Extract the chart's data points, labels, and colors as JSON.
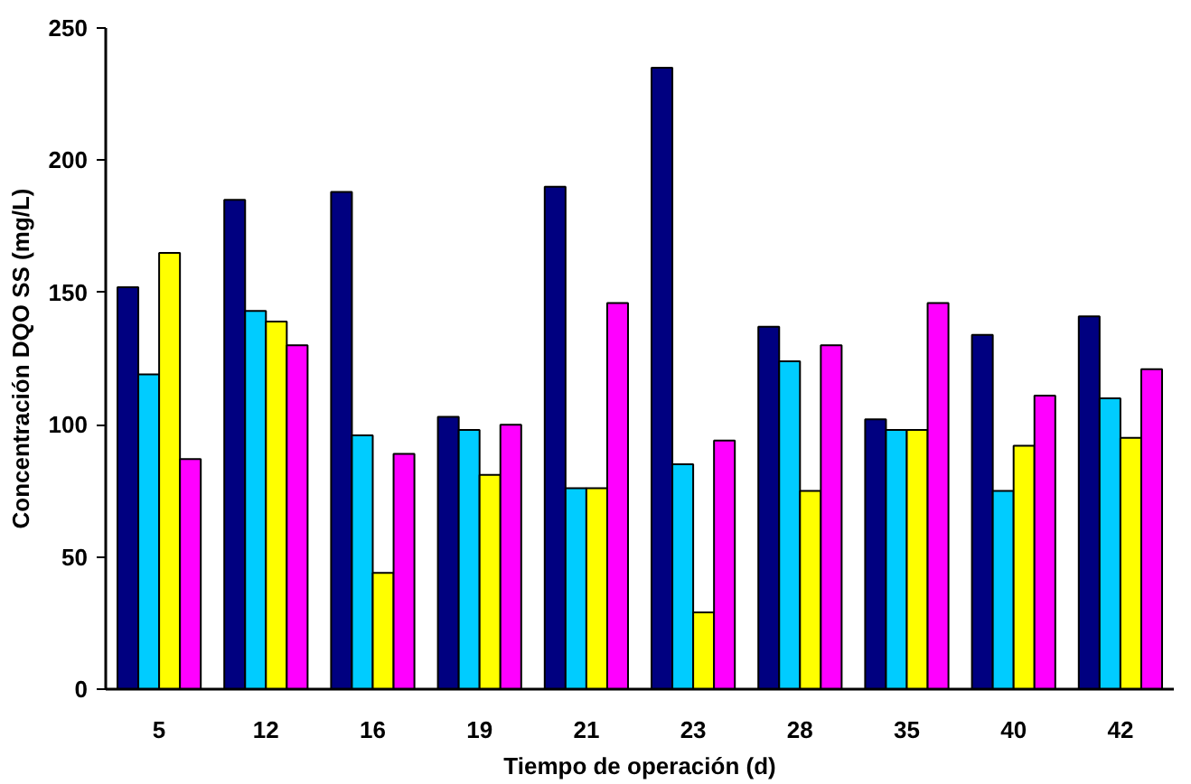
{
  "chart_data": {
    "type": "bar",
    "xlabel": "Tiempo de operación (d)",
    "ylabel": "Concentración DQO SS (mg/L)",
    "categories": [
      "5",
      "12",
      "16",
      "19",
      "21",
      "23",
      "28",
      "35",
      "40",
      "42"
    ],
    "series": [
      {
        "color": "#000080",
        "values": [
          152,
          185,
          188,
          103,
          190,
          235,
          137,
          102,
          134,
          141
        ]
      },
      {
        "color": "#00ccff",
        "values": [
          119,
          143,
          96,
          98,
          76,
          85,
          124,
          98,
          75,
          110
        ]
      },
      {
        "color": "#ffff00",
        "values": [
          165,
          139,
          44,
          81,
          76,
          29,
          75,
          98,
          92,
          95
        ]
      },
      {
        "color": "#ff00ff",
        "values": [
          87,
          130,
          89,
          100,
          146,
          94,
          130,
          146,
          111,
          121
        ]
      }
    ],
    "ylim": [
      0,
      250
    ],
    "yticks": [
      0,
      50,
      100,
      150,
      200,
      250
    ],
    "grid": false
  }
}
